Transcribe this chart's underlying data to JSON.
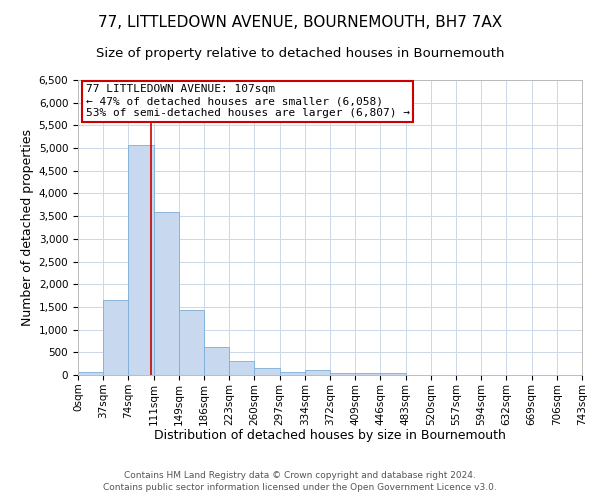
{
  "title": "77, LITTLEDOWN AVENUE, BOURNEMOUTH, BH7 7AX",
  "subtitle": "Size of property relative to detached houses in Bournemouth",
  "xlabel": "Distribution of detached houses by size in Bournemouth",
  "ylabel": "Number of detached properties",
  "bin_edges": [
    0,
    37,
    74,
    111,
    148,
    185,
    222,
    259,
    296,
    333,
    370,
    407,
    444,
    481,
    518,
    555,
    592,
    629,
    666,
    703,
    740
  ],
  "bin_labels": [
    "0sqm",
    "37sqm",
    "74sqm",
    "111sqm",
    "149sqm",
    "186sqm",
    "223sqm",
    "260sqm",
    "297sqm",
    "334sqm",
    "372sqm",
    "409sqm",
    "446sqm",
    "483sqm",
    "520sqm",
    "557sqm",
    "594sqm",
    "632sqm",
    "669sqm",
    "706sqm",
    "743sqm"
  ],
  "counts": [
    75,
    1650,
    5075,
    3600,
    1425,
    620,
    310,
    160,
    75,
    100,
    50,
    50,
    50,
    0,
    0,
    0,
    0,
    0,
    0,
    0
  ],
  "bar_color": "#c8d8ee",
  "bar_edge_color": "#7aadd6",
  "red_line_x": 107,
  "ylim": [
    0,
    6500
  ],
  "yticks": [
    0,
    500,
    1000,
    1500,
    2000,
    2500,
    3000,
    3500,
    4000,
    4500,
    5000,
    5500,
    6000,
    6500
  ],
  "annotation_line1": "77 LITTLEDOWN AVENUE: 107sqm",
  "annotation_line2": "← 47% of detached houses are smaller (6,058)",
  "annotation_line3": "53% of semi-detached houses are larger (6,807) →",
  "annotation_box_color": "#ffffff",
  "annotation_box_edge_color": "#cc0000",
  "background_color": "#ffffff",
  "grid_color": "#cdd8e8",
  "title_fontsize": 11,
  "subtitle_fontsize": 9.5,
  "label_fontsize": 9,
  "tick_fontsize": 7.5,
  "annotation_fontsize": 8,
  "footer_line1": "Contains HM Land Registry data © Crown copyright and database right 2024.",
  "footer_line2": "Contains public sector information licensed under the Open Government Licence v3.0.",
  "footer_fontsize": 6.5
}
